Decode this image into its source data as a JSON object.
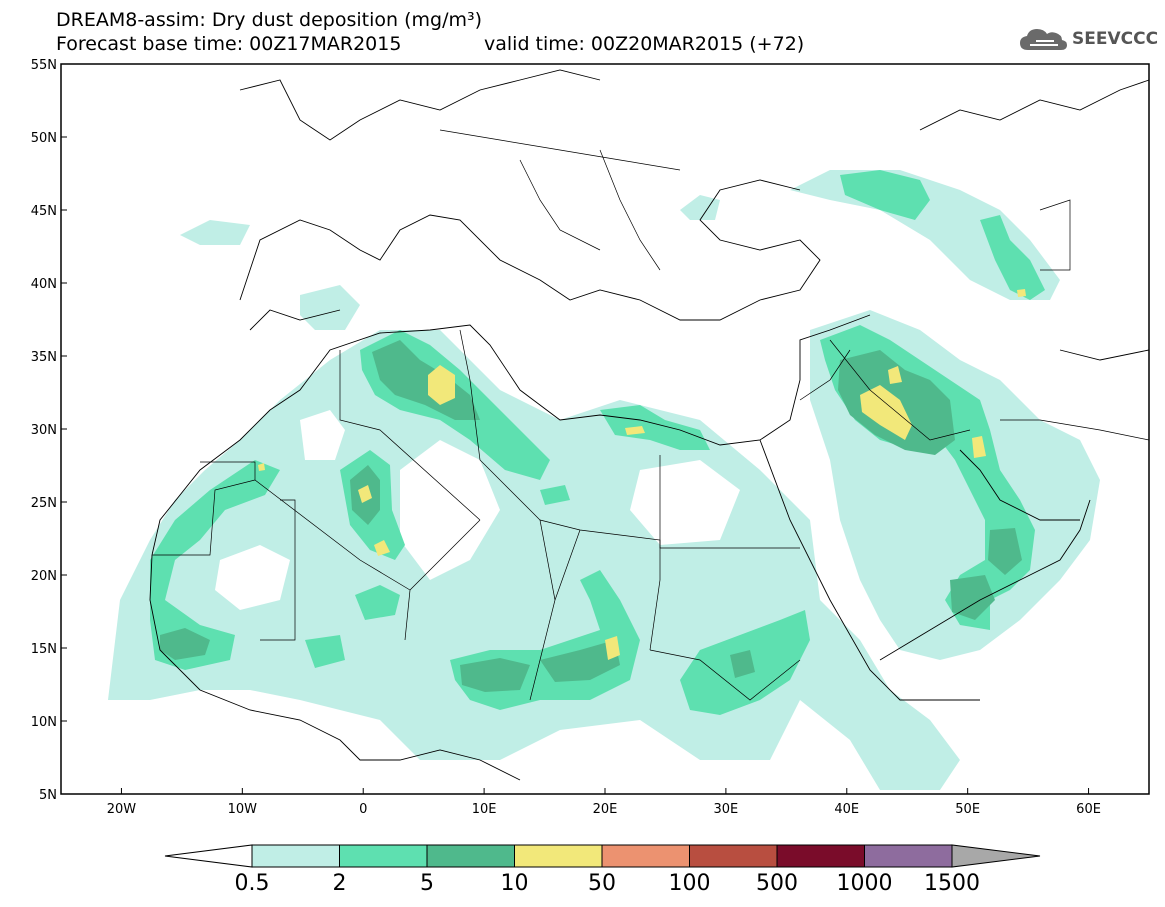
{
  "header": {
    "title_line1": "DREAM8-assim: Dry dust deposition (mg/m³)",
    "base_time": "Forecast base time: 00Z17MAR2015",
    "valid_time": "valid time: 00Z20MAR2015 (+72)",
    "logo_text": "SEEVCCC",
    "logo_icon": "cloud-icon"
  },
  "map": {
    "projection": "lat-lon",
    "lon_range": [
      -25,
      65
    ],
    "lat_range": [
      5,
      55
    ],
    "lat_ticks": [
      "55N",
      "50N",
      "45N",
      "40N",
      "35N",
      "30N",
      "25N",
      "20N",
      "15N",
      "10N",
      "5N"
    ],
    "lon_ticks": [
      "20W",
      "10W",
      "0",
      "10E",
      "20E",
      "30E",
      "40E",
      "50E",
      "60E"
    ]
  },
  "colors": {
    "c1": "#c0eee6",
    "c2": "#5ee0b0",
    "c3": "#4fb98c",
    "c4": "#f2e87a",
    "c5": "#ec9270",
    "c6": "#b84e40",
    "c7": "#7a0c2a",
    "c8": "#8e6c9e",
    "over": "#a8a8a8"
  },
  "colorbar": {
    "labels": [
      "0.5",
      "2",
      "5",
      "10",
      "50",
      "100",
      "500",
      "1000",
      "1500"
    ]
  }
}
